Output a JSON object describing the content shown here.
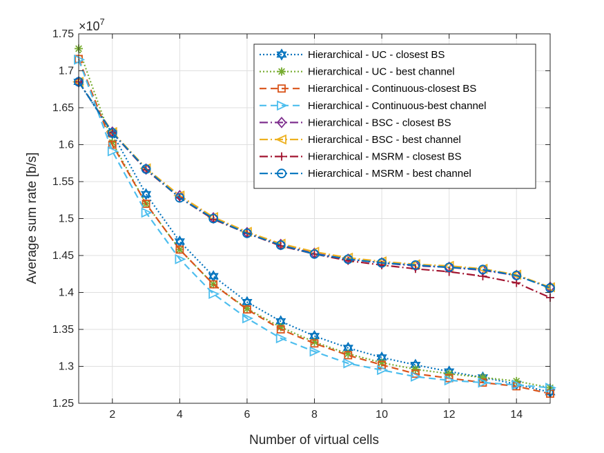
{
  "chart_data": {
    "type": "line",
    "title": "",
    "xlabel": "Number of virtual cells",
    "ylabel": "Average sum rate [b/s]",
    "y_exponent_base": "×10",
    "y_exponent_power": "7",
    "xlim": [
      1,
      15
    ],
    "ylim": [
      1.25,
      1.75
    ],
    "xticks": [
      2,
      4,
      6,
      8,
      10,
      12,
      14
    ],
    "yticks": [
      1.25,
      1.3,
      1.35,
      1.4,
      1.45,
      1.5,
      1.55,
      1.6,
      1.65,
      1.7,
      1.75
    ],
    "ytick_labels": [
      "1.25",
      "1.3",
      "1.35",
      "1.4",
      "1.45",
      "1.5",
      "1.55",
      "1.6",
      "1.65",
      "1.7",
      "1.75"
    ],
    "grid": true,
    "legend_position": "top-right",
    "x": [
      1,
      2,
      3,
      4,
      5,
      6,
      7,
      8,
      9,
      10,
      11,
      12,
      13,
      14,
      15
    ],
    "series": [
      {
        "name": "Hierarchical - UC - closest BS",
        "color": "#0072BD",
        "dash": "dotted",
        "marker": "hexagram",
        "values": [
          1.685,
          1.615,
          1.533,
          1.469,
          1.422,
          1.387,
          1.361,
          1.341,
          1.325,
          1.312,
          1.302,
          1.293,
          1.285,
          1.276,
          1.265
        ]
      },
      {
        "name": "Hierarchical - UC - best channel",
        "color": "#77AC30",
        "dash": "dotted",
        "marker": "asterisk",
        "values": [
          1.73,
          1.603,
          1.52,
          1.458,
          1.411,
          1.378,
          1.353,
          1.333,
          1.317,
          1.305,
          1.296,
          1.29,
          1.285,
          1.28,
          1.271
        ]
      },
      {
        "name": "Hierarchical - Continuous-closest BS",
        "color": "#D95319",
        "dash": "dashed",
        "marker": "square",
        "values": [
          1.716,
          1.6,
          1.52,
          1.458,
          1.411,
          1.377,
          1.35,
          1.331,
          1.315,
          1.302,
          1.29,
          1.284,
          1.278,
          1.273,
          1.263
        ]
      },
      {
        "name": "Hierarchical - Continuous-best channel",
        "color": "#4DBEEE",
        "dash": "dashed",
        "marker": "triangle-right",
        "values": [
          1.715,
          1.591,
          1.508,
          1.445,
          1.398,
          1.365,
          1.338,
          1.32,
          1.304,
          1.295,
          1.286,
          1.281,
          1.278,
          1.275,
          1.271
        ]
      },
      {
        "name": "Hierarchical - BSC - closest BS",
        "color": "#7E2F8E",
        "dash": "dashdot",
        "marker": "diamond",
        "values": [
          1.685,
          1.617,
          1.567,
          1.531,
          1.501,
          1.481,
          1.465,
          1.453,
          1.445,
          1.44,
          1.436,
          1.434,
          1.43,
          1.423,
          1.407
        ]
      },
      {
        "name": "Hierarchical - BSC - best channel",
        "color": "#EDB120",
        "dash": "dashdot",
        "marker": "triangle-left",
        "values": [
          1.685,
          1.617,
          1.568,
          1.531,
          1.502,
          1.482,
          1.466,
          1.455,
          1.447,
          1.442,
          1.438,
          1.436,
          1.432,
          1.424,
          1.407
        ]
      },
      {
        "name": "Hierarchical - MSRM - closest BS",
        "color": "#A2142F",
        "dash": "dashdot",
        "marker": "plus",
        "values": [
          1.685,
          1.616,
          1.566,
          1.528,
          1.499,
          1.48,
          1.463,
          1.452,
          1.443,
          1.437,
          1.432,
          1.428,
          1.422,
          1.413,
          1.393
        ]
      },
      {
        "name": "Hierarchical - MSRM - best channel",
        "color": "#0072BD",
        "dash": "dashdot",
        "marker": "circle",
        "values": [
          1.685,
          1.616,
          1.567,
          1.528,
          1.5,
          1.48,
          1.464,
          1.452,
          1.445,
          1.44,
          1.437,
          1.434,
          1.431,
          1.423,
          1.406
        ]
      }
    ]
  }
}
